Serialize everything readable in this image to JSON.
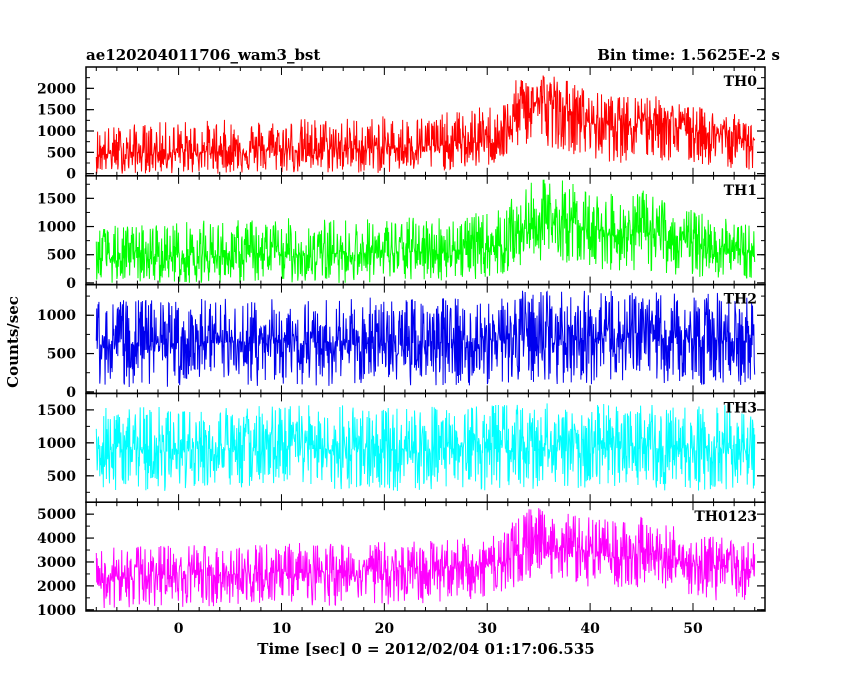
{
  "header": {
    "title": "ae120204011706_wam3_bst",
    "bin_time": "Bin time: 1.5625E-2 s"
  },
  "chart_data": {
    "type": "line",
    "title": "ae120204011706_wam3_bst",
    "subtitle": "Bin time: 1.5625E-2 s",
    "xlabel": "Time [sec] 0 = 2012/02/04 01:17:06.535",
    "ylabel": "Counts/sec",
    "xlim": [
      -9,
      57
    ],
    "x_data_range": [
      -8,
      56
    ],
    "bin_time_s": 0.015625,
    "x_ticks": [
      0,
      10,
      20,
      30,
      40,
      50
    ],
    "x_tick_labels": [
      "0",
      "10",
      "20",
      "30",
      "40",
      "50"
    ],
    "panels": [
      {
        "name": "TH0",
        "color": "#ff0000",
        "ylim": [
          -50,
          2500
        ],
        "y_ticks": [
          0,
          500,
          1000,
          1500,
          2000
        ],
        "y_tick_labels": [
          "0",
          "500",
          "1000",
          "1500",
          "2000"
        ],
        "envelope": {
          "x": [
            -8,
            0,
            10,
            20,
            25,
            30,
            32,
            33,
            35,
            38,
            40,
            43,
            45,
            48,
            50,
            53,
            56
          ],
          "mean": [
            460,
            500,
            560,
            600,
            650,
            750,
            950,
            1500,
            1700,
            1450,
            1200,
            1150,
            1350,
            1150,
            1000,
            900,
            750
          ],
          "high": [
            1100,
            1250,
            1300,
            1350,
            1400,
            1600,
            1800,
            2300,
            2500,
            2200,
            1950,
            1800,
            1950,
            1700,
            1600,
            1450,
            1300
          ],
          "low": [
            0,
            0,
            0,
            0,
            50,
            150,
            300,
            600,
            700,
            500,
            300,
            250,
            300,
            250,
            200,
            150,
            50
          ]
        }
      },
      {
        "name": "TH1",
        "color": "#00ff00",
        "ylim": [
          -30,
          1900
        ],
        "y_ticks": [
          0,
          500,
          1000,
          1500
        ],
        "y_tick_labels": [
          "0",
          "500",
          "1000",
          "1500"
        ],
        "envelope": {
          "x": [
            -8,
            0,
            10,
            20,
            25,
            30,
            32,
            33,
            35,
            38,
            40,
            43,
            45,
            48,
            50,
            53,
            56
          ],
          "mean": [
            420,
            470,
            500,
            530,
            570,
            620,
            720,
            900,
            1050,
            1100,
            950,
            850,
            900,
            800,
            700,
            600,
            520
          ],
          "high": [
            1000,
            1100,
            1150,
            1150,
            1200,
            1250,
            1400,
            1650,
            1850,
            1850,
            1650,
            1550,
            1650,
            1450,
            1300,
            1150,
            1050
          ],
          "low": [
            0,
            0,
            0,
            0,
            30,
            80,
            150,
            250,
            400,
            350,
            250,
            200,
            200,
            150,
            100,
            80,
            50
          ]
        }
      },
      {
        "name": "TH2",
        "color": "#0000ee",
        "ylim": [
          -20,
          1400
        ],
        "y_ticks": [
          0,
          500,
          1000
        ],
        "y_tick_labels": [
          "0",
          "500",
          "1000"
        ],
        "envelope": {
          "x": [
            -8,
            0,
            10,
            20,
            30,
            33,
            40,
            50,
            56
          ],
          "mean": [
            620,
            630,
            640,
            640,
            660,
            700,
            700,
            680,
            660
          ],
          "high": [
            1200,
            1220,
            1230,
            1230,
            1260,
            1320,
            1330,
            1300,
            1280
          ],
          "low": [
            60,
            60,
            70,
            70,
            80,
            100,
            100,
            90,
            80
          ]
        }
      },
      {
        "name": "TH3",
        "color": "#00ffff",
        "ylim": [
          100,
          1750
        ],
        "y_ticks": [
          500,
          1000,
          1500
        ],
        "y_tick_labels": [
          "500",
          "1000",
          "1500"
        ],
        "envelope": {
          "x": [
            -8,
            0,
            10,
            20,
            30,
            40,
            50,
            56
          ],
          "mean": [
            900,
            900,
            910,
            900,
            920,
            930,
            920,
            910
          ],
          "high": [
            1550,
            1560,
            1580,
            1570,
            1600,
            1620,
            1600,
            1580
          ],
          "low": [
            250,
            250,
            260,
            260,
            270,
            280,
            270,
            260
          ]
        }
      },
      {
        "name": "TH0123",
        "color": "#ff00ff",
        "ylim": [
          950,
          5500
        ],
        "y_ticks": [
          1000,
          2000,
          3000,
          4000,
          5000
        ],
        "y_tick_labels": [
          "1000",
          "2000",
          "3000",
          "4000",
          "5000"
        ],
        "envelope": {
          "x": [
            -8,
            0,
            10,
            20,
            25,
            30,
            32,
            33,
            35,
            38,
            40,
            43,
            45,
            48,
            50,
            53,
            56
          ],
          "mean": [
            2350,
            2450,
            2550,
            2650,
            2700,
            2850,
            3050,
            3500,
            3800,
            3500,
            3300,
            3200,
            3350,
            3100,
            2950,
            2800,
            2650
          ],
          "high": [
            3600,
            3700,
            3800,
            3850,
            3900,
            4100,
            4400,
            5100,
            5300,
            5000,
            4900,
            4700,
            5000,
            4600,
            4300,
            4000,
            3800
          ],
          "low": [
            1050,
            1100,
            1150,
            1200,
            1300,
            1500,
            1700,
            2100,
            2400,
            2100,
            1900,
            1800,
            1900,
            1700,
            1500,
            1350,
            1200
          ]
        }
      }
    ]
  }
}
